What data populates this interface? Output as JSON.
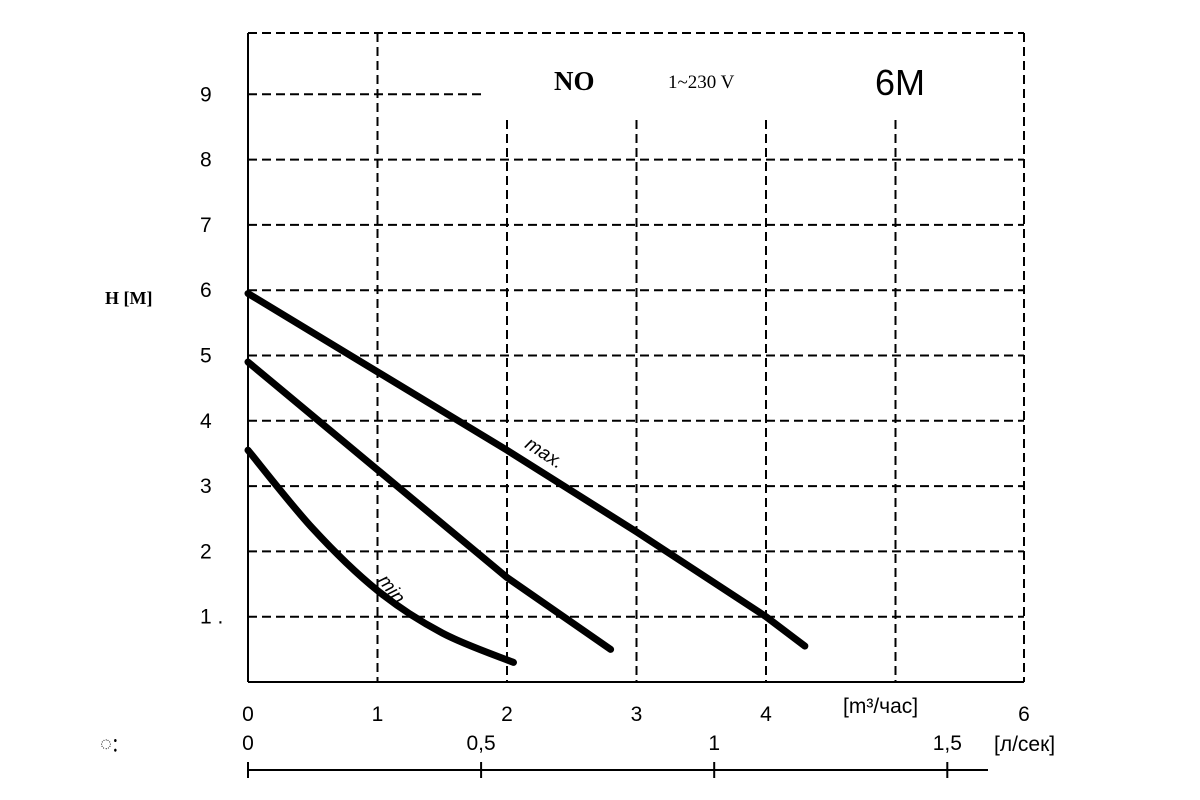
{
  "chart_data": {
    "type": "line",
    "model": "6M",
    "series_code": "NO",
    "power": "1~230 V",
    "ylabel": "H [M]",
    "xlabel": "[m³/час]",
    "x2label": "[л/сек]",
    "xlim": [
      0,
      6
    ],
    "ylim": [
      0,
      10
    ],
    "x_ticks": [
      "0",
      "1",
      "2",
      "3",
      "4",
      "6"
    ],
    "y_ticks": [
      "1 .",
      "2",
      "3",
      "4",
      "5",
      "6",
      "7",
      "8",
      "9"
    ],
    "x2_ticks": [
      "0",
      "0,5",
      "1",
      "1,5"
    ],
    "x2_tick_values": [
      0,
      0.5,
      1,
      1.5
    ],
    "left_margin_glyph": "ៈ",
    "series": [
      {
        "name": "max.",
        "points": [
          [
            0,
            5.95
          ],
          [
            1,
            4.75
          ],
          [
            2,
            3.55
          ],
          [
            3,
            2.3
          ],
          [
            4,
            1.0
          ],
          [
            4.3,
            0.55
          ]
        ]
      },
      {
        "points": [
          [
            0,
            4.9
          ],
          [
            1,
            3.25
          ],
          [
            2,
            1.6
          ],
          [
            2.8,
            0.5
          ]
        ]
      },
      {
        "name": "min.",
        "points": [
          [
            0,
            3.55
          ],
          [
            0.5,
            2.35
          ],
          [
            1,
            1.4
          ],
          [
            1.5,
            0.75
          ],
          [
            2.05,
            0.3
          ]
        ]
      }
    ]
  }
}
